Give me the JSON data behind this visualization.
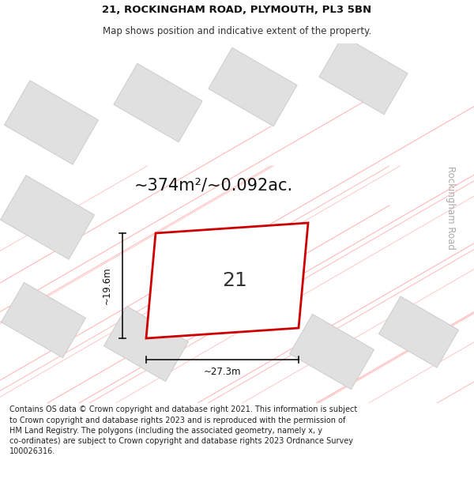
{
  "title_line1": "21, ROCKINGHAM ROAD, PLYMOUTH, PL3 5BN",
  "title_line2": "Map shows position and indicative extent of the property.",
  "footer_text": "Contains OS data © Crown copyright and database right 2021. This information is subject to Crown copyright and database rights 2023 and is reproduced with the permission of HM Land Registry. The polygons (including the associated geometry, namely x, y co-ordinates) are subject to Crown copyright and database rights 2023 Ordnance Survey 100026316.",
  "area_label": "~374m²/~0.092ac.",
  "property_number": "21",
  "dim_width": "~27.3m",
  "dim_height": "~19.6m",
  "road_label": "Rockingham Road",
  "map_bg": "#f5f5f5",
  "property_fill": "#ffffff",
  "property_edge": "#cc0000",
  "grid_line_color": "#ffb0b0",
  "building_fill": "#e0e0e0",
  "building_edge": "#cccccc",
  "title_fontsize": 9.5,
  "subtitle_fontsize": 8.5,
  "footer_fontsize": 7.0,
  "area_fontsize": 15,
  "number_fontsize": 18,
  "dim_fontsize": 8.5,
  "road_fontsize": 8.5
}
